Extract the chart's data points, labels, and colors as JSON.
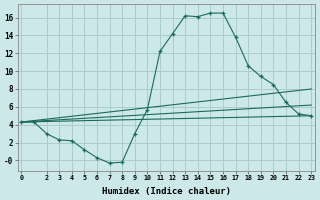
{
  "xlabel": "Humidex (Indice chaleur)",
  "bg_color": "#cce8e8",
  "line_color": "#1a6b5a",
  "grid_color": "#aacccc",
  "x_main": [
    0,
    1,
    2,
    3,
    4,
    5,
    6,
    7,
    8,
    9,
    10,
    11,
    12,
    13,
    14,
    15,
    16,
    17,
    18,
    19,
    20,
    21,
    22,
    23
  ],
  "y_main": [
    4.3,
    4.3,
    3.0,
    2.3,
    2.2,
    1.2,
    0.3,
    -0.3,
    -0.2,
    3.0,
    5.7,
    12.2,
    14.2,
    16.2,
    16.1,
    16.5,
    16.5,
    13.8,
    10.6,
    9.4,
    8.5,
    6.5,
    5.2,
    5.0
  ],
  "line2_x": [
    0,
    23
  ],
  "line2_y": [
    4.3,
    5.0
  ],
  "line3_x": [
    0,
    23
  ],
  "line3_y": [
    4.3,
    6.2
  ],
  "line4_x": [
    0,
    23
  ],
  "line4_y": [
    4.3,
    8.0
  ],
  "ylim": [
    -1.2,
    17.5
  ],
  "xlim": [
    -0.3,
    23.3
  ],
  "yticks": [
    0,
    2,
    4,
    6,
    8,
    10,
    12,
    14,
    16
  ],
  "ytick_labels": [
    "-0",
    "2",
    "4",
    "6",
    "8",
    "10",
    "12",
    "14",
    "16"
  ],
  "xticks": [
    0,
    2,
    3,
    4,
    5,
    6,
    7,
    8,
    9,
    10,
    11,
    12,
    13,
    14,
    15,
    16,
    17,
    18,
    19,
    20,
    21,
    22,
    23
  ]
}
